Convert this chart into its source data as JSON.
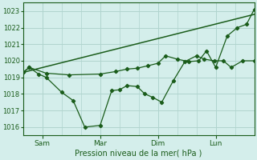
{
  "bg_color": "#d4eeeb",
  "line_color": "#1a5c1a",
  "grid_color": "#b0d4ce",
  "xlabel": "Pression niveau de la mer( hPa )",
  "ylim": [
    1015.5,
    1023.5
  ],
  "yticks": [
    1016,
    1017,
    1018,
    1019,
    1020,
    1021,
    1022,
    1023
  ],
  "xtick_labels": [
    "Sam",
    "Mar",
    "Dim",
    "Lun"
  ],
  "xtick_positions": [
    25,
    100,
    175,
    250
  ],
  "xmin": 0,
  "xmax": 300,
  "vlines": [
    25,
    100,
    175,
    250
  ],
  "trend_x": [
    0,
    300
  ],
  "trend_y": [
    1019.3,
    1022.8
  ],
  "line_jagged_x": [
    0,
    8,
    20,
    30,
    50,
    65,
    80,
    100,
    115,
    125,
    135,
    148,
    158,
    168,
    180,
    195,
    210,
    225,
    235,
    248,
    260,
    270,
    285,
    300
  ],
  "line_jagged_y": [
    1019.3,
    1019.6,
    1019.2,
    1019.0,
    1018.1,
    1017.6,
    1016.0,
    1016.1,
    1018.2,
    1018.25,
    1018.5,
    1018.45,
    1018.0,
    1017.8,
    1017.5,
    1018.8,
    1019.95,
    1020.3,
    1020.1,
    1020.0,
    1020.0,
    1019.6,
    1020.0,
    1020.0
  ],
  "line_upper_x": [
    0,
    8,
    30,
    60,
    100,
    120,
    135,
    148,
    162,
    175,
    185,
    200,
    215,
    228,
    238,
    250,
    265,
    278,
    290,
    300
  ],
  "line_upper_y": [
    1019.3,
    1019.6,
    1019.25,
    1019.15,
    1019.2,
    1019.35,
    1019.5,
    1019.55,
    1019.7,
    1019.85,
    1020.3,
    1020.1,
    1019.95,
    1020.0,
    1020.6,
    1019.6,
    1021.5,
    1022.0,
    1022.2,
    1023.1
  ]
}
